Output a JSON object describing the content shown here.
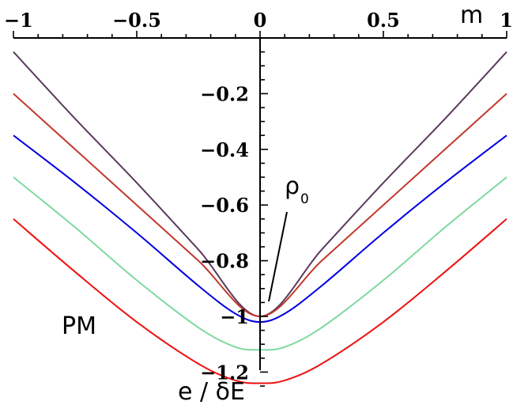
{
  "chart_data": {
    "type": "line",
    "title": "",
    "xlabel": "m",
    "ylabel": "e / δE",
    "xlim": [
      -1,
      1
    ],
    "ylim": [
      -1.27,
      0
    ],
    "x_ticks": [
      "−1",
      "−0.5",
      "0",
      "0.5",
      "1"
    ],
    "x_tick_values": [
      -1,
      -0.5,
      0,
      0.5,
      1
    ],
    "y_ticks": [
      "−0.2",
      "−0.4",
      "−0.6",
      "−0.8",
      "−1",
      "−1.2"
    ],
    "y_tick_values": [
      -0.2,
      -0.4,
      -0.6,
      -0.8,
      -1.0,
      -1.2
    ],
    "grid": false,
    "annotations": {
      "rho_main": "ρ",
      "rho_sub": "0",
      "phase": "PM"
    },
    "series": [
      {
        "color": "#5b3a5e",
        "x": [
          -1,
          -0.75,
          -0.5,
          -0.25,
          0,
          0.25,
          0.5,
          0.75,
          1
        ],
        "y": [
          -0.05,
          -0.29,
          -0.52,
          -0.76,
          -1.0,
          -0.76,
          -0.52,
          -0.29,
          -0.05
        ]
      },
      {
        "color": "#c0392b",
        "x": [
          -1,
          -0.75,
          -0.5,
          -0.25,
          0,
          0.25,
          0.5,
          0.75,
          1
        ],
        "y": [
          -0.2,
          -0.4,
          -0.6,
          -0.8,
          -1.0,
          -0.8,
          -0.6,
          -0.4,
          -0.2
        ]
      },
      {
        "color": "#0000e0",
        "x": [
          -1,
          -0.75,
          -0.5,
          -0.25,
          -0.1,
          0,
          0.1,
          0.25,
          0.5,
          0.75,
          1
        ],
        "y": [
          -0.35,
          -0.52,
          -0.7,
          -0.89,
          -0.99,
          -1.02,
          -0.99,
          -0.89,
          -0.7,
          -0.52,
          -0.35
        ]
      },
      {
        "color": "#7fd8a0",
        "x": [
          -1,
          -0.75,
          -0.5,
          -0.25,
          -0.1,
          0,
          0.1,
          0.25,
          0.5,
          0.75,
          1
        ],
        "y": [
          -0.5,
          -0.68,
          -0.87,
          -1.04,
          -1.11,
          -1.12,
          -1.11,
          -1.04,
          -0.87,
          -0.68,
          -0.5
        ]
      },
      {
        "color": "#ee1111",
        "x": [
          -1,
          -0.75,
          -0.5,
          -0.25,
          -0.1,
          0,
          0.1,
          0.25,
          0.5,
          0.75,
          1
        ],
        "y": [
          -0.65,
          -0.84,
          -1.02,
          -1.17,
          -1.23,
          -1.24,
          -1.23,
          -1.17,
          -1.02,
          -0.84,
          -0.65
        ]
      }
    ]
  }
}
